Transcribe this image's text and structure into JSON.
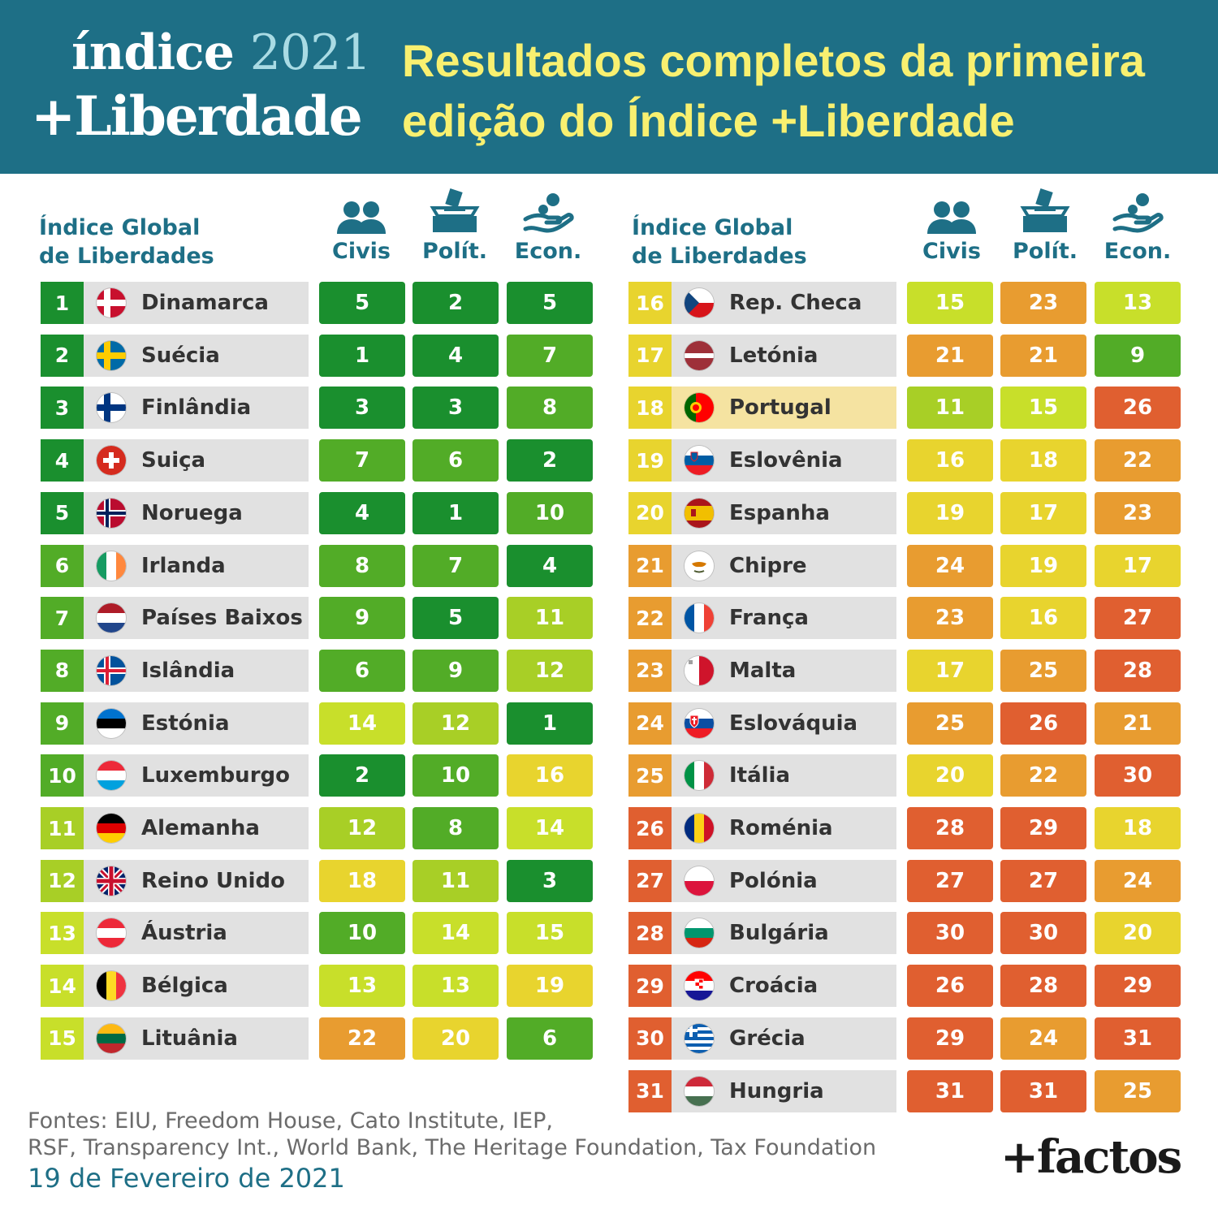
{
  "header": {
    "logo_line1_word": "índice",
    "logo_line1_year": "2021",
    "logo_line2": "+Liberdade",
    "headline": "Resultados completos da primeira edição do Índice +Liberdade"
  },
  "table": {
    "title_line1": "Índice Global",
    "title_line2": "de Liberdades",
    "columns": [
      {
        "label": "Civis",
        "icon": "people-icon"
      },
      {
        "label": "Polít.",
        "icon": "ballot-box-icon"
      },
      {
        "label": "Econ.",
        "icon": "hand-coin-icon"
      }
    ],
    "left_rows": [
      {
        "rank": "1",
        "country": "Dinamarca",
        "flag": "dk",
        "civis": "5",
        "polit": "2",
        "econ": "5"
      },
      {
        "rank": "2",
        "country": "Suécia",
        "flag": "se",
        "civis": "1",
        "polit": "4",
        "econ": "7"
      },
      {
        "rank": "3",
        "country": "Finlândia",
        "flag": "fi",
        "civis": "3",
        "polit": "3",
        "econ": "8"
      },
      {
        "rank": "4",
        "country": "Suiça",
        "flag": "ch",
        "civis": "7",
        "polit": "6",
        "econ": "2"
      },
      {
        "rank": "5",
        "country": "Noruega",
        "flag": "no",
        "civis": "4",
        "polit": "1",
        "econ": "10"
      },
      {
        "rank": "6",
        "country": "Irlanda",
        "flag": "ie",
        "civis": "8",
        "polit": "7",
        "econ": "4"
      },
      {
        "rank": "7",
        "country": "Países Baixos",
        "flag": "nl",
        "civis": "9",
        "polit": "5",
        "econ": "11"
      },
      {
        "rank": "8",
        "country": "Islândia",
        "flag": "is",
        "civis": "6",
        "polit": "9",
        "econ": "12"
      },
      {
        "rank": "9",
        "country": "Estónia",
        "flag": "ee",
        "civis": "14",
        "polit": "12",
        "econ": "1"
      },
      {
        "rank": "10",
        "country": "Luxemburgo",
        "flag": "lu",
        "civis": "2",
        "polit": "10",
        "econ": "16"
      },
      {
        "rank": "11",
        "country": "Alemanha",
        "flag": "de",
        "civis": "12",
        "polit": "8",
        "econ": "14"
      },
      {
        "rank": "12",
        "country": "Reino Unido",
        "flag": "gb",
        "civis": "18",
        "polit": "11",
        "econ": "3"
      },
      {
        "rank": "13",
        "country": "Áustria",
        "flag": "at",
        "civis": "10",
        "polit": "14",
        "econ": "15"
      },
      {
        "rank": "14",
        "country": "Bélgica",
        "flag": "be",
        "civis": "13",
        "polit": "13",
        "econ": "19"
      },
      {
        "rank": "15",
        "country": "Lituânia",
        "flag": "lt",
        "civis": "22",
        "polit": "20",
        "econ": "6"
      }
    ],
    "right_rows": [
      {
        "rank": "16",
        "country": "Rep. Checa",
        "flag": "cz",
        "civis": "15",
        "polit": "23",
        "econ": "13"
      },
      {
        "rank": "17",
        "country": "Letónia",
        "flag": "lv",
        "civis": "21",
        "polit": "21",
        "econ": "9"
      },
      {
        "rank": "18",
        "country": "Portugal",
        "flag": "pt",
        "civis": "11",
        "polit": "15",
        "econ": "26",
        "highlight": true
      },
      {
        "rank": "19",
        "country": "Eslovênia",
        "flag": "si",
        "civis": "16",
        "polit": "18",
        "econ": "22"
      },
      {
        "rank": "20",
        "country": "Espanha",
        "flag": "es",
        "civis": "19",
        "polit": "17",
        "econ": "23"
      },
      {
        "rank": "21",
        "country": "Chipre",
        "flag": "cy",
        "civis": "24",
        "polit": "19",
        "econ": "17"
      },
      {
        "rank": "22",
        "country": "França",
        "flag": "fr",
        "civis": "23",
        "polit": "16",
        "econ": "27"
      },
      {
        "rank": "23",
        "country": "Malta",
        "flag": "mt",
        "civis": "17",
        "polit": "25",
        "econ": "28"
      },
      {
        "rank": "24",
        "country": "Eslováquia",
        "flag": "sk",
        "civis": "25",
        "polit": "26",
        "econ": "21"
      },
      {
        "rank": "25",
        "country": "Itália",
        "flag": "it",
        "civis": "20",
        "polit": "22",
        "econ": "30"
      },
      {
        "rank": "26",
        "country": "Roménia",
        "flag": "ro",
        "civis": "28",
        "polit": "29",
        "econ": "18"
      },
      {
        "rank": "27",
        "country": "Polónia",
        "flag": "pl",
        "civis": "27",
        "polit": "27",
        "econ": "24"
      },
      {
        "rank": "28",
        "country": "Bulgária",
        "flag": "bg",
        "civis": "30",
        "polit": "30",
        "econ": "20"
      },
      {
        "rank": "29",
        "country": "Croácia",
        "flag": "hr",
        "civis": "26",
        "polit": "28",
        "econ": "29"
      },
      {
        "rank": "30",
        "country": "Grécia",
        "flag": "gr",
        "civis": "29",
        "polit": "24",
        "econ": "31"
      },
      {
        "rank": "31",
        "country": "Hungria",
        "flag": "hu",
        "civis": "31",
        "polit": "31",
        "econ": "25"
      }
    ]
  },
  "footer": {
    "sources_line1": "Fontes: EIU, Freedom House, Cato Institute, IEP,",
    "sources_line2": "RSF, Transparency Int., World Bank, The Heritage Foundation, Tax Foundation",
    "date": "19 de Fevereiro de 2021",
    "brand": "+factos"
  },
  "colors": {
    "header_bg": "#1e6f86",
    "headline": "#f8f070",
    "highlight_row": "#f5e3a1",
    "scale": [
      "#1a8f2e",
      "#52ac27",
      "#a8cf26",
      "#c8df2a",
      "#e8d42e",
      "#e89c30",
      "#e05f30"
    ]
  }
}
